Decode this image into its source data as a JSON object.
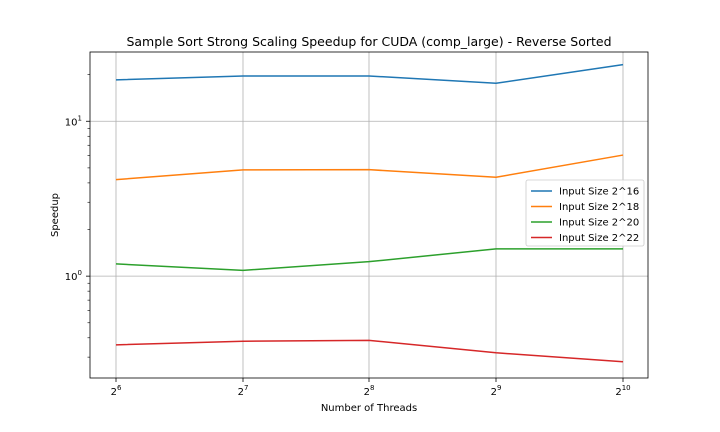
{
  "chart_data": {
    "type": "line",
    "title": "Sample Sort Strong Scaling Speedup for CUDA (comp_large) - Reverse Sorted",
    "xlabel": "Number of Threads",
    "ylabel": "Speedup",
    "x_scale": "log2",
    "y_scale": "log10",
    "grid": true,
    "legend_position": "center-right",
    "x": [
      64,
      128,
      256,
      512,
      1024
    ],
    "x_tick_labels": [
      {
        "base": "2",
        "exp": "6"
      },
      {
        "base": "2",
        "exp": "7"
      },
      {
        "base": "2",
        "exp": "8"
      },
      {
        "base": "2",
        "exp": "9"
      },
      {
        "base": "2",
        "exp": "10"
      }
    ],
    "y_tick_labels": [
      {
        "base": "10",
        "exp": "0",
        "value": 1
      },
      {
        "base": "10",
        "exp": "1",
        "value": 10
      }
    ],
    "ylim": [
      0.22,
      28
    ],
    "series": [
      {
        "name": "Input Size 2^16",
        "color": "#1f77b4",
        "values": [
          18.5,
          19.6,
          19.6,
          17.6,
          23.2
        ]
      },
      {
        "name": "Input Size 2^18",
        "color": "#ff7f0e",
        "values": [
          4.2,
          4.85,
          4.87,
          4.35,
          6.05
        ]
      },
      {
        "name": "Input Size 2^20",
        "color": "#2ca02c",
        "values": [
          1.2,
          1.09,
          1.24,
          1.5,
          1.5
        ]
      },
      {
        "name": "Input Size 2^22",
        "color": "#d62728",
        "values": [
          0.36,
          0.38,
          0.385,
          0.32,
          0.28
        ]
      }
    ]
  }
}
